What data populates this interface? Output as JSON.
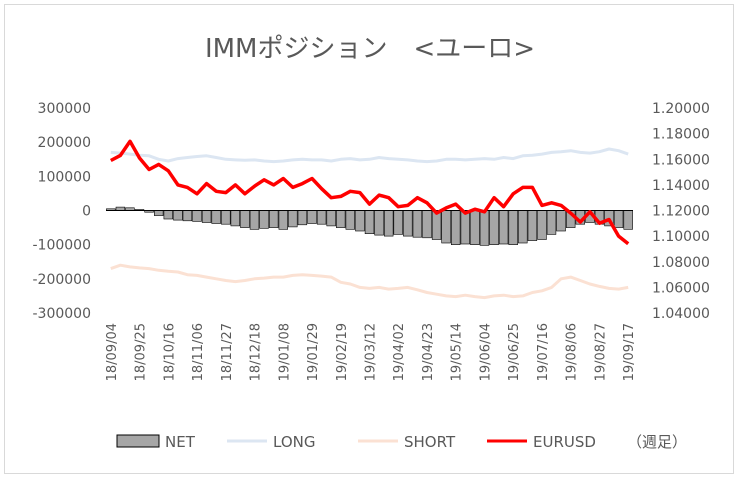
{
  "chart_data": {
    "type": "bar+line",
    "title": "IMMポジション　<ユーロ>",
    "y_left": {
      "ticks": [
        "300000",
        "200000",
        "100000",
        "0",
        "-100000",
        "-200000",
        "-300000"
      ],
      "ylim": [
        -300000,
        300000
      ]
    },
    "y_right": {
      "ticks": [
        "1.20000",
        "1.18000",
        "1.16000",
        "1.14000",
        "1.12000",
        "1.10000",
        "1.08000",
        "1.06000",
        "1.04000"
      ],
      "ylim": [
        1.04,
        1.2
      ]
    },
    "x_ticks": [
      "18/09/04",
      "18/09/25",
      "18/10/16",
      "18/11/06",
      "18/11/27",
      "18/12/18",
      "19/01/08",
      "19/01/29",
      "19/02/19",
      "19/03/12",
      "19/04/02",
      "19/04/23",
      "19/05/14",
      "19/06/04",
      "19/06/25",
      "19/07/16",
      "19/08/06",
      "19/08/27",
      "19/09/17"
    ],
    "weeks": 55,
    "legend": [
      {
        "key": "net",
        "label": "NET"
      },
      {
        "key": "long",
        "label": "LONG"
      },
      {
        "key": "short",
        "label": "SHORT"
      },
      {
        "key": "eurusd",
        "label": "EURUSD"
      }
    ],
    "legend_note": "（週足）",
    "colors": {
      "net_fill": "#a6a6a6",
      "net_stroke": "#000000",
      "long": "#dce6f2",
      "short": "#fbe1d3",
      "eurusd": "#ff0000"
    },
    "series": [
      {
        "name": "NET",
        "values": [
          5000,
          10000,
          8000,
          3000,
          -5000,
          -15000,
          -25000,
          -28000,
          -30000,
          -32000,
          -35000,
          -38000,
          -40000,
          -45000,
          -50000,
          -55000,
          -52000,
          -50000,
          -55000,
          -48000,
          -42000,
          -38000,
          -40000,
          -45000,
          -50000,
          -55000,
          -60000,
          -68000,
          -72000,
          -75000,
          -70000,
          -75000,
          -78000,
          -80000,
          -85000,
          -95000,
          -100000,
          -98000,
          -100000,
          -102000,
          -100000,
          -98000,
          -100000,
          -95000,
          -88000,
          -85000,
          -70000,
          -60000,
          -50000,
          -40000,
          -35000,
          -40000,
          -45000,
          -50000,
          -55000
        ]
      },
      {
        "name": "LONG",
        "values": [
          170000,
          168000,
          165000,
          162000,
          160000,
          150000,
          145000,
          152000,
          155000,
          158000,
          160000,
          155000,
          150000,
          148000,
          147000,
          148000,
          145000,
          143000,
          145000,
          148000,
          150000,
          148000,
          148000,
          145000,
          150000,
          152000,
          148000,
          150000,
          155000,
          152000,
          150000,
          148000,
          145000,
          143000,
          145000,
          150000,
          150000,
          148000,
          150000,
          152000,
          150000,
          155000,
          152000,
          160000,
          162000,
          165000,
          170000,
          172000,
          175000,
          170000,
          168000,
          172000,
          180000,
          175000,
          165000
        ]
      },
      {
        "name": "SHORT",
        "values": [
          -170000,
          -160000,
          -165000,
          -168000,
          -170000,
          -175000,
          -178000,
          -180000,
          -188000,
          -190000,
          -195000,
          -200000,
          -205000,
          -208000,
          -205000,
          -200000,
          -198000,
          -195000,
          -195000,
          -190000,
          -188000,
          -190000,
          -192000,
          -195000,
          -210000,
          -215000,
          -225000,
          -228000,
          -225000,
          -230000,
          -228000,
          -225000,
          -232000,
          -240000,
          -245000,
          -250000,
          -252000,
          -248000,
          -252000,
          -255000,
          -250000,
          -248000,
          -252000,
          -250000,
          -240000,
          -235000,
          -225000,
          -200000,
          -195000,
          -205000,
          -215000,
          -222000,
          -228000,
          -230000,
          -225000
        ]
      },
      {
        "name": "EURUSD",
        "values": [
          1.159,
          1.163,
          1.174,
          1.161,
          1.152,
          1.156,
          1.151,
          1.14,
          1.138,
          1.133,
          1.141,
          1.135,
          1.134,
          1.14,
          1.133,
          1.139,
          1.144,
          1.14,
          1.145,
          1.138,
          1.141,
          1.145,
          1.137,
          1.13,
          1.131,
          1.135,
          1.134,
          1.125,
          1.132,
          1.13,
          1.123,
          1.124,
          1.13,
          1.126,
          1.118,
          1.122,
          1.125,
          1.118,
          1.121,
          1.119,
          1.13,
          1.123,
          1.133,
          1.138,
          1.138,
          1.124,
          1.126,
          1.124,
          1.118,
          1.111,
          1.119,
          1.11,
          1.113,
          1.1,
          1.094
        ]
      }
    ]
  }
}
